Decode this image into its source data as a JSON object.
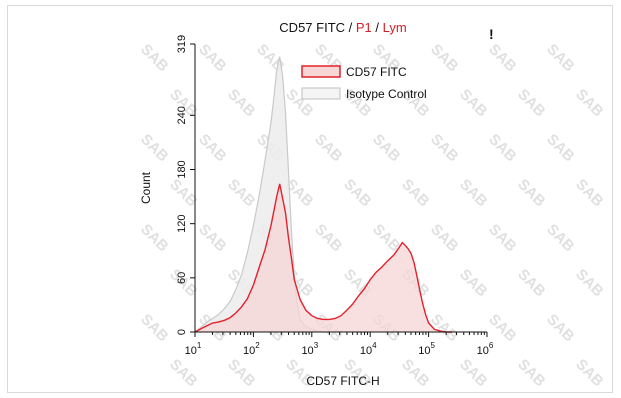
{
  "chart_data": {
    "type": "area",
    "title_parts": [
      {
        "text": "CD57 FITC",
        "color": "#111111"
      },
      {
        "text": " / ",
        "color": "#111111"
      },
      {
        "text": "P1",
        "color": "#d4202b"
      },
      {
        "text": " / ",
        "color": "#111111"
      },
      {
        "text": "Lym",
        "color": "#d4202b"
      }
    ],
    "corner_mark": "!",
    "xlabel": "CD57 FITC-H",
    "ylabel": "Count",
    "x_scale": "log10",
    "xlim": [
      10,
      1000000
    ],
    "ylim": [
      0,
      319
    ],
    "x_ticks": [
      {
        "base": "10",
        "exp": "1"
      },
      {
        "base": "10",
        "exp": "2"
      },
      {
        "base": "10",
        "exp": "3"
      },
      {
        "base": "10",
        "exp": "4"
      },
      {
        "base": "10",
        "exp": "5"
      },
      {
        "base": "10",
        "exp": "6"
      }
    ],
    "y_ticks": [
      "0",
      "60",
      "120",
      "180",
      "240",
      "319"
    ],
    "legend_position": "top-right",
    "grid": false,
    "watermark": "SAB",
    "series": [
      {
        "name": "CD57 FITC",
        "stroke": "#e3202b",
        "fill": "#f7d6d6",
        "x": [
          10,
          13,
          16,
          20,
          25,
          32,
          40,
          50,
          63,
          79,
          100,
          126,
          158,
          200,
          251,
          282,
          316,
          355,
          398,
          447,
          501,
          631,
          794,
          1000,
          1259,
          1585,
          1995,
          2512,
          3162,
          3981,
          5012,
          6310,
          7943,
          10000,
          12589,
          15849,
          19953,
          25119,
          31623,
          35481,
          39811,
          44668,
          50119,
          56234,
          63096,
          70795,
          79433,
          89125,
          100000,
          125893,
          158489,
          199526,
          251189
        ],
        "y": [
          0,
          4,
          7,
          10,
          11,
          13,
          16,
          21,
          28,
          37,
          52,
          72,
          91,
          118,
          150,
          164,
          148,
          132,
          105,
          82,
          58,
          36,
          24,
          18,
          15,
          14,
          14,
          15,
          18,
          24,
          31,
          40,
          48,
          58,
          66,
          72,
          79,
          85,
          94,
          99,
          96,
          92,
          87,
          77,
          62,
          46,
          31,
          19,
          10,
          3,
          1,
          0,
          0
        ]
      },
      {
        "name": "Isotype Control",
        "stroke": "#c9c9c9",
        "fill": "#ececec",
        "x": [
          10,
          13,
          16,
          20,
          25,
          32,
          40,
          50,
          63,
          79,
          100,
          126,
          158,
          200,
          224,
          251,
          282,
          316,
          355,
          398,
          447,
          501,
          562,
          631,
          794,
          1000,
          1259,
          1585,
          1995
        ],
        "y": [
          0,
          6,
          11,
          15,
          19,
          26,
          34,
          47,
          64,
          88,
          118,
          152,
          190,
          232,
          260,
          290,
          305,
          284,
          243,
          180,
          112,
          62,
          30,
          14,
          6,
          3,
          1,
          0,
          0
        ]
      }
    ]
  }
}
